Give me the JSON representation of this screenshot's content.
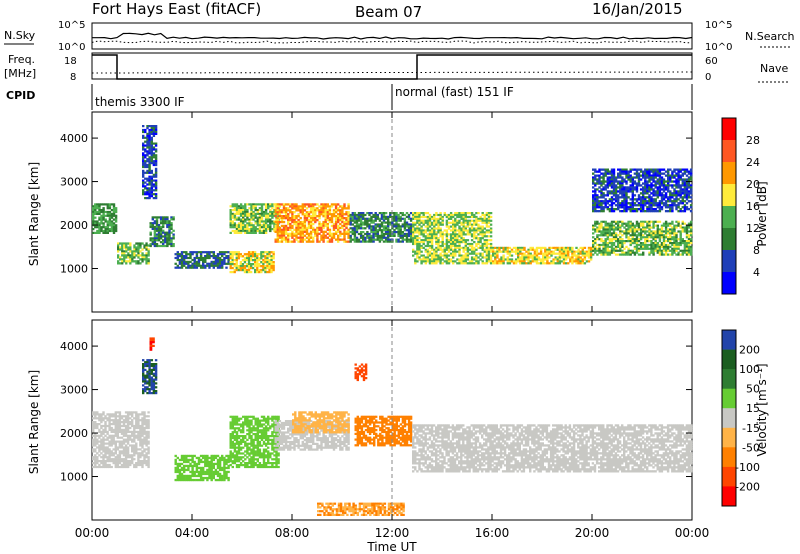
{
  "header": {
    "radar_title": "Fort Hays East (fitACF)",
    "beam": "Beam 07",
    "date": "16/Jan/2015"
  },
  "top_panels": {
    "nsky_label": "N.Sky",
    "nsearch_label": "N.Search",
    "noise_ticks": [
      "10^5",
      "10^0"
    ],
    "freq_label": "Freq.",
    "freq_unit": "[MHz]",
    "freq_ticks": [
      "18",
      "8"
    ],
    "nave_label": "Nave",
    "nave_ticks": [
      "60",
      "0"
    ],
    "cpid_label": "CPID",
    "cpid_segments": [
      "themis 3300 IF",
      "normal (fast) 151 IF"
    ],
    "freq_trace": [
      [
        0,
        18
      ],
      [
        1,
        18
      ],
      [
        1,
        8
      ],
      [
        13,
        8
      ],
      [
        13,
        18
      ],
      [
        24,
        18
      ]
    ],
    "mode_change_hour": 12
  },
  "chart_data": [
    {
      "type": "heatmap",
      "name": "power",
      "ylabel": "Slant Range [km]",
      "xlabel": "Time UT",
      "x_range_hours": [
        0,
        24
      ],
      "ylim": [
        0,
        4600
      ],
      "x_ticks": [
        "00:00",
        "04:00",
        "08:00",
        "12:00",
        "16:00",
        "20:00",
        "00:00"
      ],
      "y_ticks": [
        1000,
        2000,
        3000,
        4000
      ],
      "colorbar": {
        "label": "Power [dB]",
        "ticks": [
          "28",
          "24",
          "20",
          "16",
          "12",
          "8",
          "4"
        ],
        "colors": [
          "#0000ff",
          "#1f3fb8",
          "#2e7d32",
          "#4caf50",
          "#ffeb3b",
          "#ff9800",
          "#ff5722",
          "#ff0000"
        ]
      },
      "regions": [
        {
          "x0": 0.0,
          "x1": 1.0,
          "y0": 1800,
          "y1": 2500,
          "value": 12
        },
        {
          "x0": 1.0,
          "x1": 2.3,
          "y0": 1100,
          "y1": 1600,
          "value": 14
        },
        {
          "x0": 2.3,
          "x1": 3.3,
          "y0": 1500,
          "y1": 2200,
          "value": 10
        },
        {
          "x0": 2.0,
          "x1": 2.6,
          "y0": 2600,
          "y1": 4300,
          "value": 6
        },
        {
          "x0": 3.3,
          "x1": 5.5,
          "y0": 1000,
          "y1": 1400,
          "value": 8
        },
        {
          "x0": 5.5,
          "x1": 7.3,
          "y0": 900,
          "y1": 1400,
          "value": 18
        },
        {
          "x0": 5.5,
          "x1": 7.5,
          "y0": 1800,
          "y1": 2500,
          "value": 15
        },
        {
          "x0": 7.3,
          "x1": 10.3,
          "y0": 1600,
          "y1": 2500,
          "value": 22
        },
        {
          "x0": 10.3,
          "x1": 12.8,
          "y0": 1600,
          "y1": 2300,
          "value": 10
        },
        {
          "x0": 12.8,
          "x1": 16.0,
          "y0": 1100,
          "y1": 2300,
          "value": 16
        },
        {
          "x0": 16.0,
          "x1": 20.0,
          "y0": 1100,
          "y1": 1500,
          "value": 18
        },
        {
          "x0": 20.0,
          "x1": 24.0,
          "y0": 1300,
          "y1": 2100,
          "value": 14
        },
        {
          "x0": 20.0,
          "x1": 24.0,
          "y0": 2300,
          "y1": 3300,
          "value": 6
        }
      ]
    },
    {
      "type": "heatmap",
      "name": "velocity",
      "ylabel": "Slant Range [km]",
      "xlabel": "Time UT",
      "x_range_hours": [
        0,
        24
      ],
      "ylim": [
        0,
        4600
      ],
      "x_ticks": [
        "00:00",
        "04:00",
        "08:00",
        "12:00",
        "16:00",
        "20:00",
        "00:00"
      ],
      "y_ticks": [
        1000,
        2000,
        3000,
        4000
      ],
      "colorbar": {
        "label": "Velocity [m s⁻¹]",
        "ticks": [
          "200",
          "100",
          "50",
          "15",
          "-15",
          "-50",
          "-100",
          "-200"
        ],
        "colors": [
          "#2244aa",
          "#1b5e20",
          "#2e7d32",
          "#66cc33",
          "#c8c8c4",
          "#ffb347",
          "#ff8000",
          "#ff4500",
          "#ff0000"
        ]
      },
      "regions": [
        {
          "x0": 0.0,
          "x1": 2.3,
          "y0": 1200,
          "y1": 2500,
          "value": 0
        },
        {
          "x0": 2.0,
          "x1": 2.6,
          "y0": 2900,
          "y1": 3700,
          "value": 200
        },
        {
          "x0": 2.3,
          "x1": 2.5,
          "y0": 3900,
          "y1": 4200,
          "value": -200
        },
        {
          "x0": 3.3,
          "x1": 5.5,
          "y0": 900,
          "y1": 1500,
          "value": 40
        },
        {
          "x0": 5.5,
          "x1": 7.5,
          "y0": 1200,
          "y1": 2400,
          "value": 35
        },
        {
          "x0": 7.3,
          "x1": 10.3,
          "y0": 1600,
          "y1": 2300,
          "value": 0
        },
        {
          "x0": 8.0,
          "x1": 10.3,
          "y0": 2000,
          "y1": 2500,
          "value": -40
        },
        {
          "x0": 10.5,
          "x1": 11.0,
          "y0": 3200,
          "y1": 3600,
          "value": -150
        },
        {
          "x0": 10.5,
          "x1": 12.8,
          "y0": 1700,
          "y1": 2400,
          "value": -60
        },
        {
          "x0": 12.8,
          "x1": 24.0,
          "y0": 1100,
          "y1": 2200,
          "value": 0
        },
        {
          "x0": 9.0,
          "x1": 12.5,
          "y0": 100,
          "y1": 400,
          "value": -50
        }
      ]
    }
  ]
}
